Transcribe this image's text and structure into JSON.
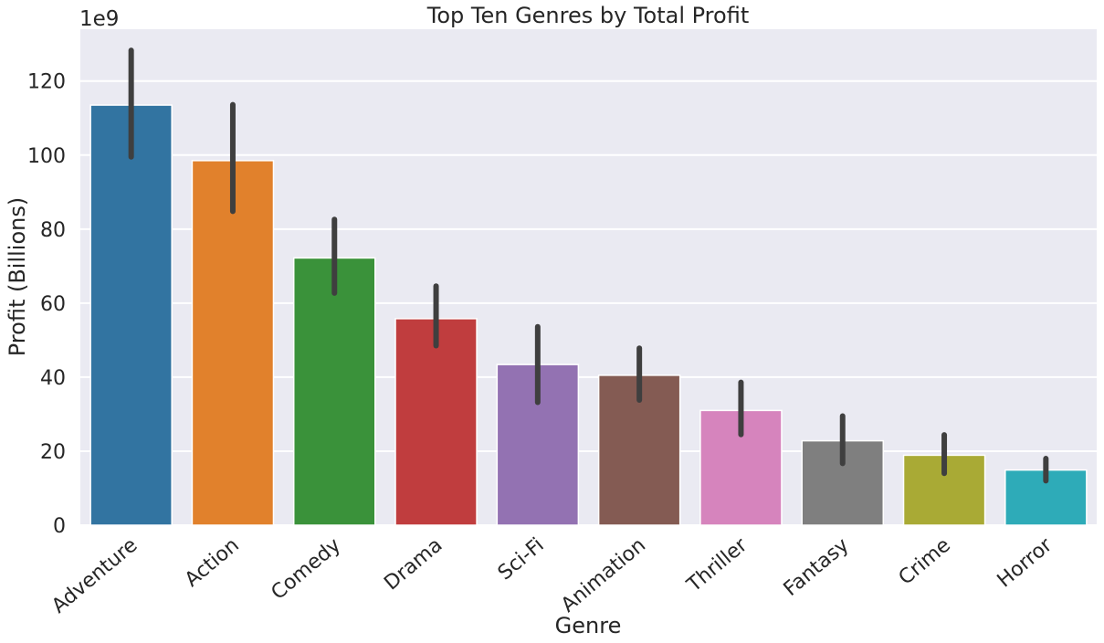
{
  "chart_data": {
    "type": "bar",
    "title": "Top Ten Genres by Total Profit",
    "xlabel": "Genre",
    "ylabel": "Profit (Billions)",
    "offset_text": "1e9",
    "scale_exponent": 9,
    "ylim": [
      0,
      134
    ],
    "yticks": [
      0,
      20,
      40,
      60,
      80,
      100,
      120
    ],
    "grid": true,
    "categories": [
      "Adventure",
      "Action",
      "Comedy",
      "Drama",
      "Sci-Fi",
      "Animation",
      "Thriller",
      "Fantasy",
      "Crime",
      "Horror"
    ],
    "values": [
      113.5,
      98.5,
      72.2,
      55.8,
      43.4,
      40.5,
      31.0,
      22.8,
      18.9,
      14.9
    ],
    "error_low": [
      99.5,
      84.8,
      62.7,
      48.5,
      33.2,
      33.8,
      24.5,
      16.7,
      14.0,
      12.0
    ],
    "error_high": [
      128.3,
      113.6,
      82.6,
      64.6,
      53.6,
      47.8,
      38.6,
      29.5,
      24.4,
      18.0
    ],
    "colors": [
      "#3274a1",
      "#e1812c",
      "#3a923a",
      "#c03d3e",
      "#9372b2",
      "#845b53",
      "#d684bd",
      "#7f7f7f",
      "#a9aa35",
      "#2eabb8"
    ],
    "background_color": "#eaeaf2",
    "grid_color": "#ffffff",
    "errorbar_color": "#3f3f3f"
  }
}
